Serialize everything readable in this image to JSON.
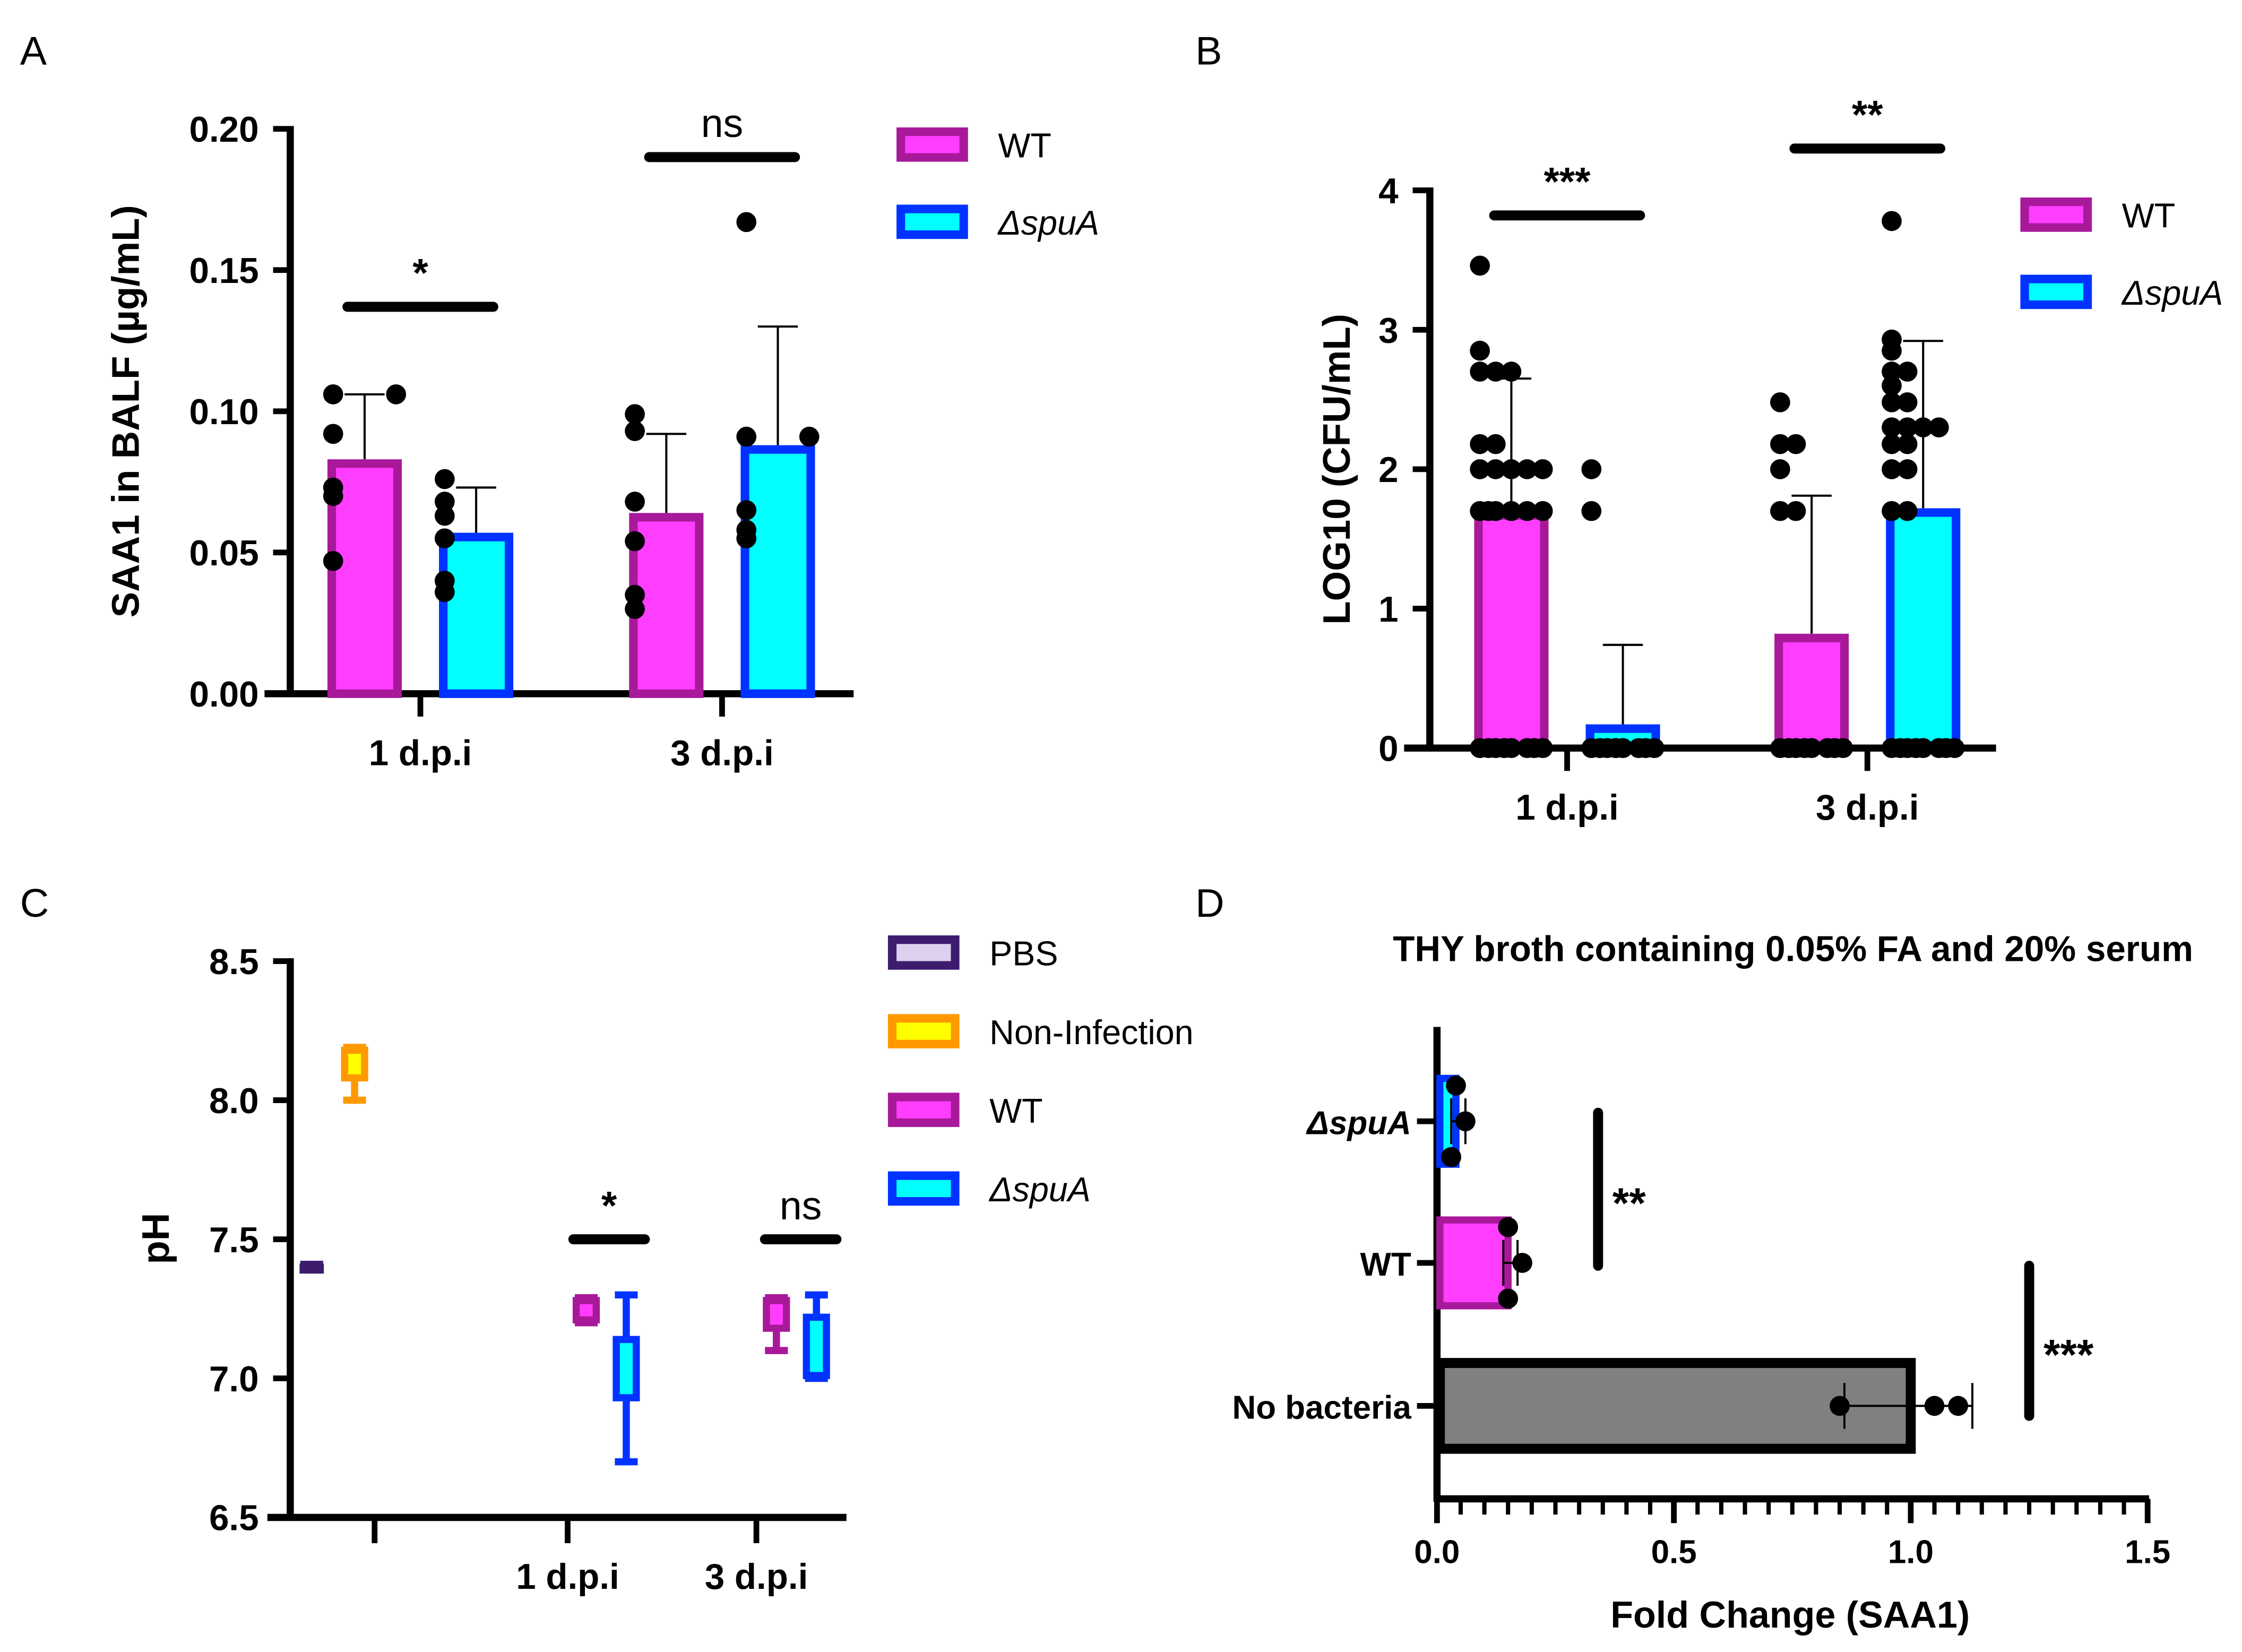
{
  "colors": {
    "wt_fill": "#ff3dff",
    "wt_edge": "#a8199a",
    "spua_fill": "#00ffff",
    "spua_edge": "#0033ff",
    "pbs_fill": "#dcd0ee",
    "pbs_edge": "#3d1c6e",
    "noninf_fill": "#ffff00",
    "noninf_edge": "#ff9900",
    "nobact_fill": "#808080",
    "nobact_edge": "#000000"
  },
  "chart_data": [
    {
      "panel": "A",
      "type": "bar",
      "ylabel": "SAA1 in BALF (µg/mL)",
      "xlabel": "",
      "ylim": [
        0,
        0.2
      ],
      "yticks": [
        "0.00",
        "0.05",
        "0.10",
        "0.15",
        "0.20"
      ],
      "categories": [
        "1 d.p.i",
        "3 d.p.i"
      ],
      "legend": [
        "WT",
        "ΔspuA"
      ],
      "legend_position": "right",
      "series": [
        {
          "name": "WT",
          "values": [
            0.083,
            0.064
          ],
          "error_upper": [
            0.106,
            0.092
          ],
          "points": [
            [
              0.106,
              0.106,
              0.092,
              0.073,
              0.07,
              0.047
            ],
            [
              0.093,
              0.099,
              0.068,
              0.054,
              0.035,
              0.03
            ]
          ]
        },
        {
          "name": "ΔspuA",
          "values": [
            0.057,
            0.088
          ],
          "error_upper": [
            0.073,
            0.13
          ],
          "points": [
            [
              0.068,
              0.076,
              0.063,
              0.055,
              0.04,
              0.036
            ],
            [
              0.167,
              0.091,
              0.091,
              0.065,
              0.058,
              0.055
            ]
          ]
        }
      ],
      "significance": [
        {
          "label": "*",
          "value": 0.137,
          "category": 0
        },
        {
          "label": "ns",
          "value": 0.19,
          "category": 1
        }
      ]
    },
    {
      "panel": "B",
      "type": "bar",
      "ylabel": "LOG10 (CFU/mL)",
      "xlabel": "",
      "ylim": [
        0,
        4
      ],
      "yticks": [
        "0",
        "1",
        "2",
        "3",
        "4"
      ],
      "categories": [
        "1 d.p.i",
        "3 d.p.i"
      ],
      "legend": [
        "WT",
        "ΔspuA"
      ],
      "legend_position": "right",
      "series": [
        {
          "name": "WT",
          "values": [
            1.7,
            0.82
          ],
          "error_upper": [
            2.65,
            1.81
          ],
          "points": [
            [
              0,
              0,
              0,
              0,
              0,
              0,
              0,
              0,
              1.7,
              1.7,
              1.7,
              1.7,
              1.7,
              1.7,
              2.0,
              2.0,
              2.0,
              2.0,
              2.0,
              2.18,
              2.18,
              2.7,
              2.7,
              2.7,
              2.85,
              3.46
            ],
            [
              0,
              0,
              0,
              0,
              0,
              0,
              0,
              0,
              1.7,
              1.7,
              2.0,
              2.18,
              2.18,
              2.48
            ]
          ]
        },
        {
          "name": "ΔspuA",
          "values": [
            0.17,
            1.72
          ],
          "error_upper": [
            0.74,
            2.92
          ],
          "points": [
            [
              0,
              0,
              0,
              0,
              0,
              0,
              0,
              0,
              1.7,
              2.0
            ],
            [
              0,
              0,
              0,
              0,
              0,
              0,
              0,
              0,
              1.7,
              1.7,
              2.0,
              2.0,
              2.18,
              2.18,
              2.3,
              2.3,
              2.3,
              2.3,
              2.48,
              2.48,
              2.6,
              2.7,
              2.7,
              2.85,
              2.93,
              3.78
            ]
          ]
        }
      ],
      "significance": [
        {
          "label": "***",
          "value": 3.82,
          "category": 0
        },
        {
          "label": "**",
          "value": 4.3,
          "category": 1
        }
      ]
    },
    {
      "panel": "C",
      "type": "box",
      "ylabel": "pH",
      "xlabel": "",
      "ylim": [
        6.5,
        8.5
      ],
      "yticks": [
        "6.5",
        "7.0",
        "7.5",
        "8.0",
        "8.5"
      ],
      "categories": [
        "",
        "1 d.p.i",
        "3 d.p.i"
      ],
      "legend": [
        "PBS",
        "Non-Infection",
        "WT",
        "ΔspuA"
      ],
      "legend_position": "right",
      "boxes": [
        {
          "group": "PBS",
          "category": 0,
          "min": 7.39,
          "q1": 7.39,
          "median": 7.4,
          "q3": 7.41,
          "max": 7.41
        },
        {
          "group": "Non-Infection",
          "category": 0,
          "min": 8.0,
          "q1": 8.07,
          "median": 8.12,
          "q3": 8.19,
          "max": 8.19
        },
        {
          "group": "WT",
          "category": 1,
          "min": 7.2,
          "q1": 7.2,
          "median": 7.25,
          "q3": 7.29,
          "max": 7.29
        },
        {
          "group": "ΔspuA",
          "category": 1,
          "min": 6.7,
          "q1": 6.92,
          "median": 7.05,
          "q3": 7.15,
          "max": 7.3
        },
        {
          "group": "WT",
          "category": 2,
          "min": 7.1,
          "q1": 7.17,
          "median": 7.25,
          "q3": 7.29,
          "max": 7.29
        },
        {
          "group": "ΔspuA",
          "category": 2,
          "min": 7.0,
          "q1": 7.0,
          "median": 7.15,
          "q3": 7.23,
          "max": 7.3
        }
      ],
      "significance": [
        {
          "label": "*",
          "value": 7.5,
          "category": 1
        },
        {
          "label": "ns",
          "value": 7.5,
          "category": 2
        }
      ]
    },
    {
      "panel": "D",
      "type": "bar",
      "orientation": "horizontal",
      "title": "THY broth containing 0.05% FA and 20% serum",
      "xlabel": "Fold Change (SAA1)",
      "ylabel": "",
      "xlim": [
        0,
        1.5
      ],
      "xticks": [
        "0.0",
        "0.5",
        "1.0",
        "1.5"
      ],
      "categories": [
        "ΔspuA",
        "WT",
        "No bacteria"
      ],
      "values": [
        0.04,
        0.15,
        1.0
      ],
      "error": [
        [
          0.03,
          0.06
        ],
        [
          0.14,
          0.17
        ],
        [
          0.86,
          1.13
        ]
      ],
      "points": [
        [
          0.04,
          0.06,
          0.03
        ],
        [
          0.15,
          0.18,
          0.15
        ],
        [
          0.85,
          1.05,
          1.1
        ]
      ],
      "significance": [
        {
          "label": "**",
          "value": 0.34
        },
        {
          "label": "***",
          "value": 1.25
        }
      ]
    }
  ],
  "panel_labels": [
    "A",
    "B",
    "C",
    "D"
  ]
}
